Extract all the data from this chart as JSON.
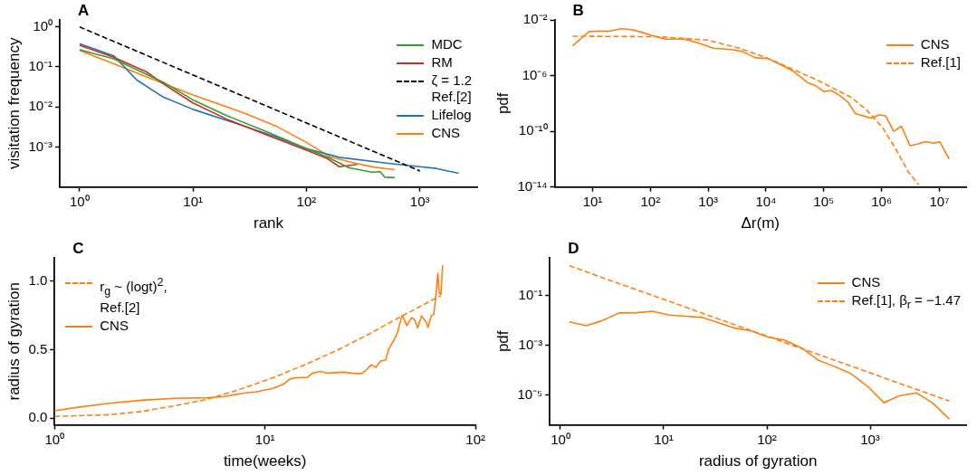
{
  "chart_data": [
    {
      "type": "line",
      "title": "A",
      "xlabel": "rank",
      "ylabel": "visitation frequency",
      "log": "xy",
      "legend": "top right",
      "xlim": [
        0.67,
        3200
      ],
      "ylim": [
        0.0001,
        1.5
      ],
      "xticks": [
        {
          "value": 1,
          "label": "10⁰"
        },
        {
          "value": 10,
          "label": "10¹"
        },
        {
          "value": 100,
          "label": "10²"
        },
        {
          "value": 1000,
          "label": "10³"
        }
      ],
      "yticks": [
        {
          "value": 1,
          "label": "10⁰"
        },
        {
          "value": 0.1,
          "label": "10⁻¹"
        },
        {
          "value": 0.01,
          "label": "10⁻²"
        },
        {
          "value": 0.001,
          "label": "10⁻³"
        }
      ],
      "series": [
        {
          "name": "MDC",
          "color": "#2ca02c",
          "x": [
            1,
            2,
            5.7,
            10,
            20,
            46.5,
            100,
            151,
            238,
            377,
            446,
            490,
            600
          ],
          "values": [
            0.27,
            0.16,
            0.039,
            0.015,
            0.006,
            0.0023,
            0.00091,
            0.00057,
            0.0003,
            0.000235,
            0.00024,
            0.000175,
            0.00017
          ]
        },
        {
          "name": "RM",
          "color": "#d62728",
          "x": [
            1,
            2,
            3.9,
            5.7,
            10,
            20,
            46.5,
            100,
            151,
            195,
            271,
            280
          ],
          "values": [
            0.35,
            0.175,
            0.075,
            0.035,
            0.0126,
            0.0049,
            0.0019,
            0.00083,
            0.00052,
            0.00032,
            0.00036,
            0.00037
          ]
        },
        {
          "name": "ζ = 1.2\nRef.[2]",
          "color": "#000000",
          "line_style": "dashed",
          "x": [
            1,
            1000
          ],
          "values": [
            1,
            0.000251
          ]
        },
        {
          "name": "Lifelog",
          "color": "#1f77b4",
          "x": [
            1,
            2,
            3.2,
            5.4,
            10,
            27.6,
            53,
            100,
            195,
            525,
            1000,
            1390,
            2200
          ],
          "values": [
            0.38,
            0.19,
            0.047,
            0.018,
            0.0087,
            0.0034,
            0.0018,
            0.00091,
            0.00055,
            0.00039,
            0.00032,
            0.00029,
            0.00022
          ]
        },
        {
          "name": "CNS",
          "color": "#ff7f0e",
          "x": [
            1,
            2,
            5.4,
            10,
            27.6,
            53,
            100,
            161,
            271,
            400,
            600
          ],
          "values": [
            0.26,
            0.12,
            0.039,
            0.02,
            0.0072,
            0.0034,
            0.0013,
            0.00057,
            0.00039,
            0.00031,
            0.00027
          ]
        }
      ]
    },
    {
      "type": "line",
      "title": "B",
      "xlabel": "Δr(m)",
      "ylabel": "pdf",
      "log": "xy",
      "legend": "top right",
      "xlim": [
        2.2,
        29000000
      ],
      "ylim": [
        1e-14,
        0.01
      ],
      "xticks": [
        {
          "value": 10,
          "label": "10¹"
        },
        {
          "value": 100,
          "label": "10²"
        },
        {
          "value": 1000,
          "label": "10³"
        },
        {
          "value": 10000,
          "label": "10⁴"
        },
        {
          "value": 100000,
          "label": "10⁵"
        },
        {
          "value": 1000000,
          "label": "10⁶"
        },
        {
          "value": 10000000,
          "label": "10⁷"
        }
      ],
      "yticks": [
        {
          "value": 0.01,
          "label": "10⁻²"
        },
        {
          "value": 1e-06,
          "label": "10⁻⁶"
        },
        {
          "value": 1e-10,
          "label": "10⁻¹⁰"
        },
        {
          "value": 1e-14,
          "label": "10⁻¹⁴"
        }
      ],
      "series": [
        {
          "name": "CNS",
          "color": "#ff7f0e",
          "x": [
            4.5,
            8.6,
            12.6,
            18.4,
            31,
            45,
            66,
            110,
            183,
            390,
            650,
            1230,
            2650,
            3900,
            6500,
            10700,
            20000,
            29500,
            52000,
            72000,
            100000,
            135000,
            186000,
            260000,
            350000,
            660000,
            910000,
            1170000,
            1620000,
            2200000,
            3100000,
            4200000,
            5800000,
            7900000,
            10200000,
            14700000
          ],
          "values": [
            0.00014,
            0.0014,
            0.0016,
            0.0015,
            0.0023,
            0.0021,
            0.0014,
            0.00072,
            0.00042,
            0.00042,
            0.00023,
            9.3e-05,
            7.1e-05,
            5.4e-05,
            1.9e-05,
            1.7e-05,
            4.8e-06,
            2.1e-06,
            3.2e-07,
            1.9e-07,
            7.2e-08,
            8.5e-08,
            3.8e-08,
            1.3e-08,
            1.9e-09,
            8.7e-10,
            1.5e-09,
            1.3e-09,
            1e-10,
            2.3e-10,
            9.1e-12,
            1.2e-11,
            1.8e-11,
            1.4e-11,
            1.7e-11,
            1.05e-12
          ]
        },
        {
          "name": "Ref.[1]",
          "color": "#ff7f0e",
          "line_style": "dashed",
          "x": [
            4.5,
            140,
            1000,
            3400,
            10000,
            23000,
            81000,
            290000,
            550000,
            1050000,
            1700000,
            2900000,
            4400000
          ],
          "values": [
            0.00068,
            0.00062,
            0.00035,
            9.3e-05,
            2e-05,
            4.4e-06,
            4.3e-07,
            2.9e-08,
            3.4e-09,
            1.7e-10,
            6.9e-12,
            1.2e-13,
            1.4e-14
          ]
        }
      ]
    },
    {
      "type": "line",
      "title": "C",
      "xlabel": "time(weeks)",
      "ylabel": "radius of gyration",
      "log": "x",
      "legend": "top left",
      "xlim": [
        1,
        100
      ],
      "ylim": [
        -0.05,
        1.17
      ],
      "xticks": [
        {
          "value": 1,
          "label": "10⁰"
        },
        {
          "value": 10,
          "label": "10¹"
        },
        {
          "value": 100,
          "label": "10²"
        }
      ],
      "yticks": [
        {
          "value": 0,
          "label": "0.0"
        },
        {
          "value": 0.5,
          "label": "0.5"
        },
        {
          "value": 1,
          "label": "1.0"
        }
      ],
      "series": [
        {
          "name": "r$_{g}$ ~ (logt)$^{2}$,\nRef.[2]",
          "color": "#ff7f0e",
          "line_style": "dashed",
          "x": [
            1,
            1.82,
            2.6,
            3.7,
            5.3,
            7.55,
            10.8,
            15.4,
            22,
            31.3,
            44.8,
            68.5
          ],
          "values": [
            0.012,
            0.024,
            0.048,
            0.089,
            0.136,
            0.208,
            0.292,
            0.388,
            0.495,
            0.615,
            0.746,
            0.895
          ]
        },
        {
          "name": "CNS",
          "color": "#ff7f0e",
          "x": [
            1,
            1.27,
            1.82,
            2.6,
            3.7,
            5.3,
            6.3,
            8.1,
            9,
            10.8,
            12.2,
            13.1,
            14.1,
            15.9,
            16.8,
            18.4,
            19.7,
            23.6,
            27.7,
            29,
            30.3,
            31.9,
            33.6,
            35.5,
            37.4,
            38.8,
            40.9,
            42.4,
            44.8,
            47.2,
            49.8,
            51.5,
            53.1,
            55.4,
            58.4,
            59.5,
            61.6,
            63.4,
            65,
            66.2,
            67.3,
            68.5,
            69.8
          ],
          "values": [
            0.053,
            0.077,
            0.108,
            0.13,
            0.144,
            0.148,
            0.156,
            0.184,
            0.19,
            0.215,
            0.244,
            0.285,
            0.294,
            0.297,
            0.328,
            0.34,
            0.328,
            0.335,
            0.323,
            0.328,
            0.352,
            0.388,
            0.371,
            0.416,
            0.423,
            0.507,
            0.567,
            0.615,
            0.751,
            0.675,
            0.734,
            0.715,
            0.658,
            0.746,
            0.699,
            0.663,
            0.746,
            0.758,
            0.914,
            1.057,
            0.914,
            0.902,
            1.117
          ]
        }
      ]
    },
    {
      "type": "line",
      "title": "D",
      "xlabel": "radius of gyration",
      "ylabel": "pdf",
      "log": "xy",
      "legend": "top right",
      "xlim": [
        0.79,
        8500
      ],
      "ylim": [
        6.2e-07,
        3.2
      ],
      "xticks": [
        {
          "value": 1,
          "label": "10⁰"
        },
        {
          "value": 10,
          "label": "10¹"
        },
        {
          "value": 100,
          "label": "10²"
        },
        {
          "value": 1000,
          "label": "10³"
        }
      ],
      "yticks": [
        {
          "value": 0.1,
          "label": "10⁻¹"
        },
        {
          "value": 0.001,
          "label": "10⁻³"
        },
        {
          "value": 1e-05,
          "label": "10⁻⁵"
        }
      ],
      "series": [
        {
          "name": "CNS",
          "color": "#ff7f0e",
          "x": [
            1.22,
            1.78,
            2.5,
            3.7,
            5.5,
            7.7,
            11.4,
            23.4,
            33.5,
            49.8,
            69,
            102,
            147,
            218,
            312,
            447,
            640,
            955,
            1360,
            1880,
            2800,
            4000,
            5850
          ],
          "values": [
            0.0086,
            0.006,
            0.0094,
            0.0195,
            0.02,
            0.023,
            0.016,
            0.0129,
            0.0081,
            0.0047,
            0.0038,
            0.0021,
            0.0016,
            0.00076,
            0.00025,
            0.00014,
            7.4e-05,
            2.1e-05,
            4.8e-06,
            8.9e-06,
            1.2e-05,
            4.8e-06,
            1.07e-06
          ]
        },
        {
          "name": "Ref.[1], β$_{r}$ = −1.47",
          "color": "#ff7f0e",
          "line_style": "dashed",
          "x": [
            1.22,
            5850
          ],
          "values": [
            1.53,
            5.6e-06
          ]
        }
      ]
    }
  ]
}
